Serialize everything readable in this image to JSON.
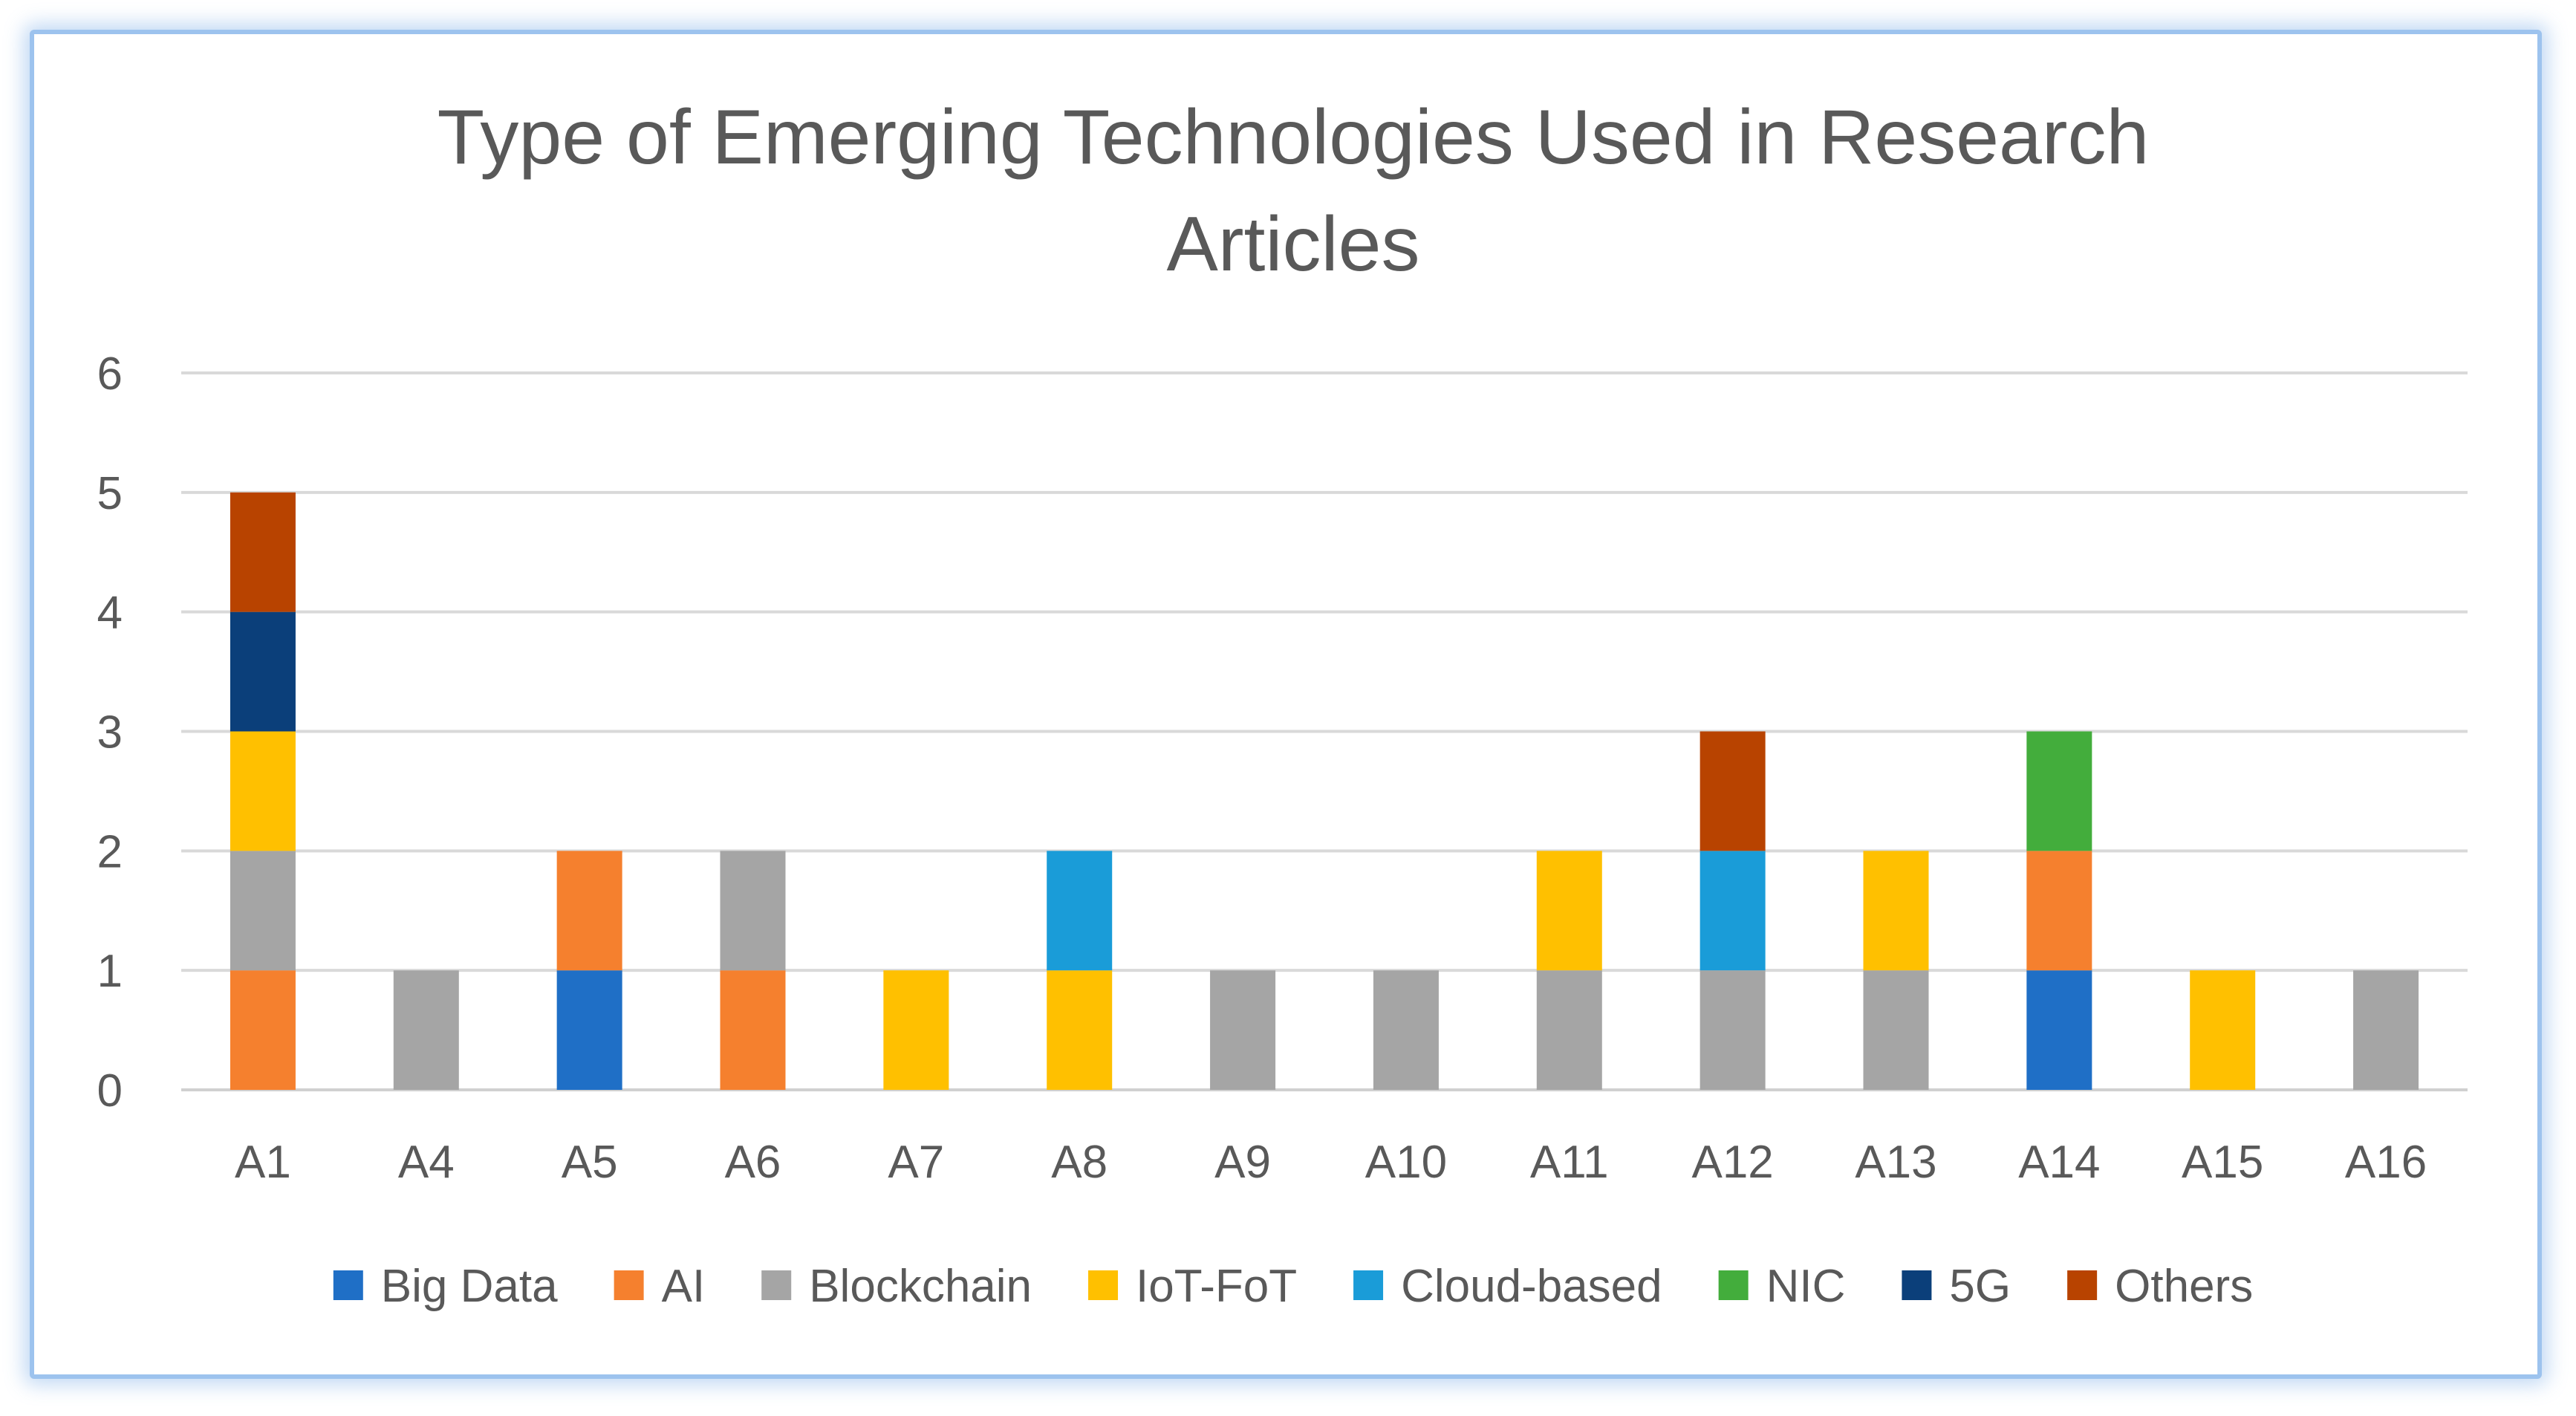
{
  "chart_data": {
    "type": "bar",
    "stacked": true,
    "title": "Type of Emerging Technologies Used in Research Articles",
    "title_lines": [
      "Type of Emerging Technologies Used in Research",
      "Articles"
    ],
    "xlabel": "",
    "ylabel": "",
    "ylim": [
      0,
      6
    ],
    "yticks": [
      0,
      1,
      2,
      3,
      4,
      5,
      6
    ],
    "grid": true,
    "legend_position": "bottom",
    "categories": [
      "A1",
      "A4",
      "A5",
      "A6",
      "A7",
      "A8",
      "A9",
      "A10",
      "A11",
      "A12",
      "A13",
      "A14",
      "A15",
      "A16"
    ],
    "series": [
      {
        "name": "Big Data",
        "color": "#1f6fc6",
        "values": [
          0,
          0,
          1,
          0,
          0,
          0,
          0,
          0,
          0,
          0,
          0,
          1,
          0,
          0
        ]
      },
      {
        "name": "AI",
        "color": "#f5802e",
        "values": [
          1,
          0,
          1,
          1,
          0,
          0,
          0,
          0,
          0,
          0,
          0,
          1,
          0,
          0
        ]
      },
      {
        "name": "Blockchain",
        "color": "#a5a5a5",
        "values": [
          1,
          1,
          0,
          1,
          0,
          0,
          1,
          1,
          1,
          1,
          1,
          0,
          0,
          1
        ]
      },
      {
        "name": "IoT-FoT",
        "color": "#ffc000",
        "values": [
          1,
          0,
          0,
          0,
          1,
          1,
          0,
          0,
          1,
          0,
          1,
          0,
          1,
          0
        ]
      },
      {
        "name": "Cloud-based",
        "color": "#1a9cd8",
        "values": [
          0,
          0,
          0,
          0,
          0,
          1,
          0,
          0,
          0,
          1,
          0,
          0,
          0,
          0
        ]
      },
      {
        "name": "NIC",
        "color": "#43ad3c",
        "values": [
          0,
          0,
          0,
          0,
          0,
          0,
          0,
          0,
          0,
          0,
          0,
          1,
          0,
          0
        ]
      },
      {
        "name": "5G",
        "color": "#0b3f7a",
        "values": [
          1,
          0,
          0,
          0,
          0,
          0,
          0,
          0,
          0,
          0,
          0,
          0,
          0,
          0
        ]
      },
      {
        "name": "Others",
        "color": "#b84300",
        "values": [
          1,
          0,
          0,
          0,
          0,
          0,
          0,
          0,
          0,
          1,
          0,
          0,
          0,
          0
        ]
      }
    ]
  }
}
